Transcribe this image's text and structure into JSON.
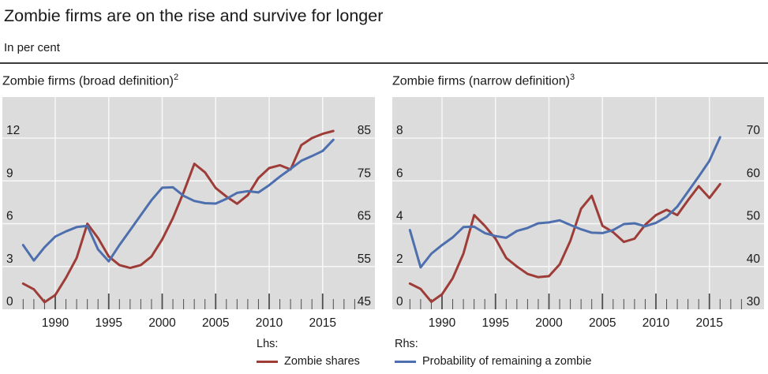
{
  "title": "Zombie firms are on the rise and survive for longer",
  "subtitle": "In per cent",
  "legend": {
    "lhs": {
      "heading": "Lhs:",
      "label": "Zombie shares",
      "color": "#9e3d38"
    },
    "rhs": {
      "heading": "Rhs:",
      "label": "Probability of remaining a zombie",
      "color": "#4e6fae"
    }
  },
  "colors": {
    "plot_background": "#dcdcdc",
    "gridline": "#f7f7f7",
    "tick": "#4d4d4d",
    "text": "#1a1a1a",
    "zombie_shares_red": "#9e3d38",
    "probability_blue": "#4e6fae"
  },
  "chart_data": [
    {
      "type": "line",
      "title": "Zombie firms (broad definition)",
      "sup": "2",
      "x_ticks": [
        1990,
        1995,
        2000,
        2005,
        2010,
        2015
      ],
      "lhs_ticks": [
        0,
        3,
        6,
        9,
        12
      ],
      "rhs_ticks": [
        45,
        55,
        65,
        75,
        85
      ],
      "lhs_range": [
        0,
        14.9
      ],
      "rhs_range": [
        45,
        94.6
      ],
      "grid": true,
      "legend_position": "bottom",
      "years": [
        1987,
        1988,
        1989,
        1990,
        1991,
        1992,
        1993,
        1994,
        1995,
        1996,
        1997,
        1998,
        1999,
        2000,
        2001,
        2002,
        2003,
        2004,
        2005,
        2006,
        2007,
        2008,
        2009,
        2010,
        2011,
        2012,
        2013,
        2014,
        2015,
        2016
      ],
      "series": [
        {
          "name": "Zombie shares",
          "axis": "lhs",
          "color": "#9e3d38",
          "values": [
            1.8,
            1.4,
            0.5,
            1.0,
            2.2,
            3.6,
            6.0,
            5.0,
            3.7,
            3.1,
            2.9,
            3.1,
            3.7,
            4.9,
            6.4,
            8.2,
            10.2,
            9.6,
            8.5,
            7.9,
            7.4,
            8.0,
            9.2,
            9.9,
            10.1,
            9.8,
            11.5,
            12.0,
            12.3,
            12.5
          ]
        },
        {
          "name": "Probability of remaining a zombie",
          "axis": "rhs",
          "color": "#4e6fae",
          "values": [
            60.0,
            56.4,
            59.5,
            62.0,
            63.2,
            64.2,
            64.5,
            59.0,
            56.2,
            60.0,
            63.5,
            67.0,
            70.5,
            73.4,
            73.5,
            71.5,
            70.3,
            69.8,
            69.7,
            70.8,
            72.2,
            72.6,
            72.3,
            74.0,
            76.0,
            77.8,
            79.7,
            80.8,
            82.0,
            84.6
          ]
        }
      ]
    },
    {
      "type": "line",
      "title": "Zombie firms (narrow definition)",
      "sup": "3",
      "x_ticks": [
        1990,
        1995,
        2000,
        2005,
        2010,
        2015
      ],
      "lhs_ticks": [
        0,
        2,
        4,
        6,
        8
      ],
      "rhs_ticks": [
        30,
        40,
        50,
        60,
        70
      ],
      "lhs_range": [
        0,
        9.9
      ],
      "rhs_range": [
        30,
        79.6
      ],
      "grid": true,
      "legend_position": "bottom",
      "years": [
        1987,
        1988,
        1989,
        1990,
        1991,
        1992,
        1993,
        1994,
        1995,
        1996,
        1997,
        1998,
        1999,
        2000,
        2001,
        2002,
        2003,
        2004,
        2005,
        2006,
        2007,
        2008,
        2009,
        2010,
        2011,
        2012,
        2013,
        2014,
        2015,
        2016
      ],
      "series": [
        {
          "name": "Zombie shares",
          "axis": "lhs",
          "color": "#9e3d38",
          "values": [
            1.2,
            0.95,
            0.35,
            0.7,
            1.45,
            2.6,
            4.4,
            3.9,
            3.3,
            2.4,
            2.0,
            1.65,
            1.5,
            1.55,
            2.1,
            3.2,
            4.7,
            5.3,
            3.9,
            3.6,
            3.15,
            3.3,
            3.95,
            4.4,
            4.65,
            4.4,
            5.1,
            5.75,
            5.2,
            5.85
          ]
        },
        {
          "name": "Probability of remaining a zombie",
          "axis": "rhs",
          "color": "#4e6fae",
          "values": [
            48.5,
            39.8,
            43.0,
            45.0,
            46.8,
            49.2,
            49.3,
            47.8,
            47.1,
            46.7,
            48.3,
            49.0,
            50.1,
            50.3,
            50.8,
            49.7,
            48.7,
            47.9,
            47.8,
            48.5,
            49.9,
            50.1,
            49.4,
            50.2,
            51.6,
            54.0,
            57.5,
            61.0,
            64.7,
            70.2
          ]
        }
      ]
    }
  ]
}
